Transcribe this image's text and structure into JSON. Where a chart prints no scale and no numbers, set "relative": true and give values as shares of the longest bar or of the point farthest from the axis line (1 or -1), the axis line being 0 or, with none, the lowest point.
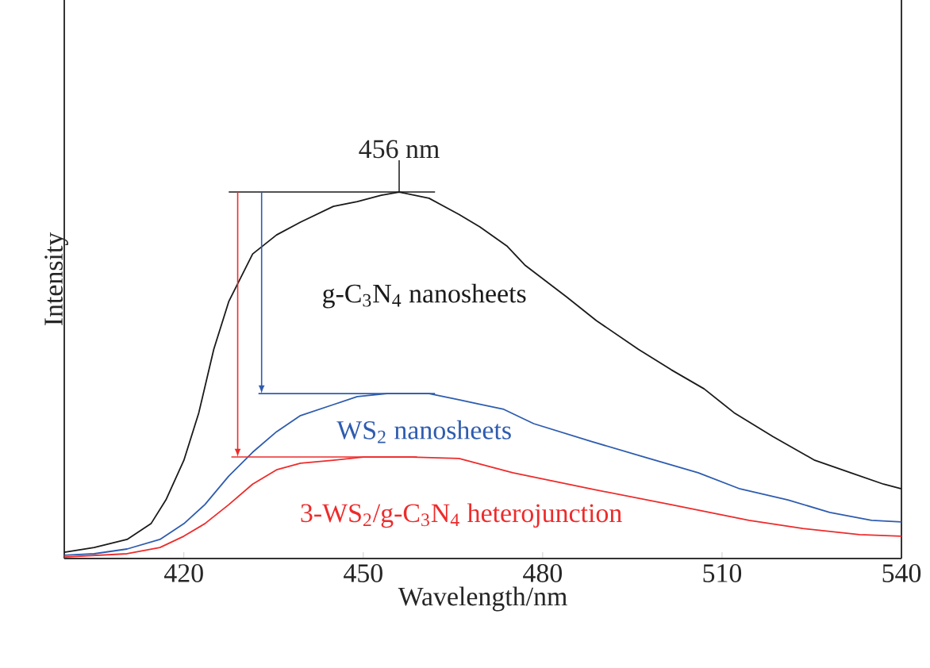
{
  "chart_data": {
    "type": "line",
    "relative": true,
    "xlabel": "Wavelength/nm",
    "ylabel": "Intensity",
    "xlim": [
      400,
      540
    ],
    "xticks": [
      420,
      450,
      480,
      510,
      540
    ],
    "annotations": [
      {
        "text": "456 nm",
        "x": 456,
        "y": 1
      }
    ],
    "series": [
      {
        "name": "g-C$_{3}$N$_{4}$ nanosheets",
        "color": "#1a1a1a",
        "x": [
          400,
          405,
          410.5,
          414.5,
          417,
          420,
          422.5,
          425,
          427.5,
          431.5,
          435.5,
          439.5,
          445,
          449,
          453,
          456,
          461,
          466,
          469.5,
          474,
          477,
          484,
          489,
          496,
          501.5,
          507,
          512,
          518.5,
          525.5,
          531.5,
          537,
          540
        ],
        "values": [
          0.017,
          0.03,
          0.052,
          0.095,
          0.16,
          0.268,
          0.398,
          0.571,
          0.701,
          0.831,
          0.883,
          0.918,
          0.961,
          0.974,
          0.991,
          1,
          0.983,
          0.939,
          0.905,
          0.853,
          0.801,
          0.714,
          0.649,
          0.571,
          0.515,
          0.463,
          0.398,
          0.333,
          0.268,
          0.234,
          0.203,
          0.19
        ]
      },
      {
        "name": "WS$_{2}$ nanosheets",
        "color": "#2e5caf",
        "x": [
          400,
          405,
          410.5,
          416,
          420,
          423.5,
          427.5,
          431.5,
          435.5,
          439.5,
          445,
          449,
          454,
          461,
          466,
          473.5,
          478.5,
          488,
          497,
          506,
          513,
          521,
          528,
          535,
          540
        ],
        "values": [
          0.009,
          0.013,
          0.026,
          0.052,
          0.095,
          0.147,
          0.225,
          0.29,
          0.346,
          0.39,
          0.42,
          0.442,
          0.45,
          0.45,
          0.433,
          0.407,
          0.368,
          0.32,
          0.277,
          0.234,
          0.19,
          0.16,
          0.126,
          0.104,
          0.1
        ]
      },
      {
        "name": "3-WS$_{2}$/g-C$_{3}$N$_{4}$  heterojunction",
        "color": "#ee2b2b",
        "x": [
          400,
          410.5,
          416,
          420,
          423.5,
          427.5,
          431.5,
          435.5,
          439.5,
          445,
          450,
          458,
          466,
          475,
          488,
          501.5,
          514.5,
          523.5,
          533,
          540
        ],
        "values": [
          0.004,
          0.013,
          0.03,
          0.061,
          0.095,
          0.147,
          0.203,
          0.242,
          0.26,
          0.268,
          0.277,
          0.277,
          0.273,
          0.234,
          0.19,
          0.147,
          0.104,
          0.082,
          0.065,
          0.061
        ]
      }
    ]
  }
}
